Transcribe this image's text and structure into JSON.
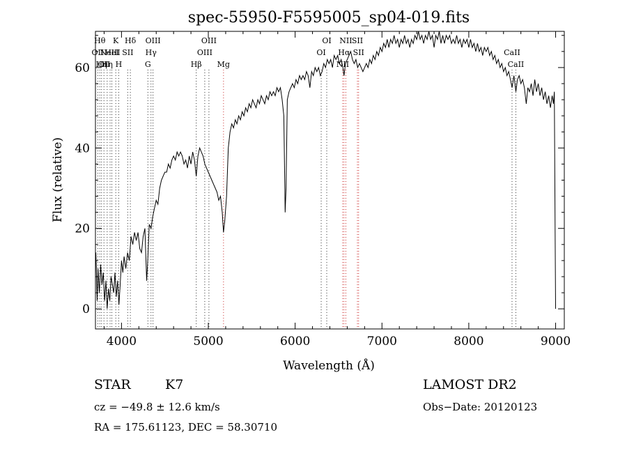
{
  "chart_data": {
    "type": "line",
    "title": "spec-55950-F5595005_sp04-019.fits",
    "xlabel": "Wavelength (Å)",
    "ylabel": "Flux (relative)",
    "xlim": [
      3700,
      9100
    ],
    "ylim": [
      -5,
      69
    ],
    "x_ticks": [
      4000,
      5000,
      6000,
      7000,
      8000,
      9000
    ],
    "y_ticks": [
      0,
      20,
      40,
      60
    ],
    "series": [
      {
        "color": "#000000",
        "points": [
          [
            3705,
            14
          ],
          [
            3720,
            2
          ],
          [
            3730,
            10
          ],
          [
            3745,
            4
          ],
          [
            3760,
            11
          ],
          [
            3775,
            6
          ],
          [
            3790,
            9
          ],
          [
            3805,
            2
          ],
          [
            3820,
            7
          ],
          [
            3835,
            0
          ],
          [
            3850,
            5
          ],
          [
            3865,
            2
          ],
          [
            3880,
            8
          ],
          [
            3895,
            6
          ],
          [
            3910,
            4
          ],
          [
            3925,
            9
          ],
          [
            3940,
            3
          ],
          [
            3955,
            7
          ],
          [
            3970,
            1
          ],
          [
            3985,
            6
          ],
          [
            4000,
            12
          ],
          [
            4015,
            9
          ],
          [
            4030,
            13
          ],
          [
            4050,
            10
          ],
          [
            4070,
            14
          ],
          [
            4090,
            12
          ],
          [
            4110,
            18
          ],
          [
            4130,
            16
          ],
          [
            4150,
            19
          ],
          [
            4170,
            17
          ],
          [
            4190,
            19
          ],
          [
            4210,
            15
          ],
          [
            4230,
            14
          ],
          [
            4250,
            18
          ],
          [
            4270,
            20
          ],
          [
            4290,
            7
          ],
          [
            4300,
            11
          ],
          [
            4320,
            21
          ],
          [
            4340,
            20
          ],
          [
            4360,
            23
          ],
          [
            4380,
            25
          ],
          [
            4400,
            27
          ],
          [
            4420,
            26
          ],
          [
            4440,
            30
          ],
          [
            4460,
            32
          ],
          [
            4480,
            33
          ],
          [
            4500,
            34
          ],
          [
            4520,
            34
          ],
          [
            4540,
            36
          ],
          [
            4560,
            35
          ],
          [
            4580,
            37
          ],
          [
            4600,
            38
          ],
          [
            4620,
            37
          ],
          [
            4640,
            39
          ],
          [
            4660,
            38
          ],
          [
            4680,
            39
          ],
          [
            4700,
            38
          ],
          [
            4720,
            36
          ],
          [
            4740,
            37
          ],
          [
            4760,
            35
          ],
          [
            4780,
            38
          ],
          [
            4800,
            36
          ],
          [
            4820,
            39
          ],
          [
            4840,
            37
          ],
          [
            4861,
            33
          ],
          [
            4880,
            38
          ],
          [
            4900,
            40
          ],
          [
            4920,
            39
          ],
          [
            4940,
            38
          ],
          [
            4960,
            36
          ],
          [
            4980,
            35
          ],
          [
            5000,
            34
          ],
          [
            5020,
            33
          ],
          [
            5040,
            32
          ],
          [
            5060,
            31
          ],
          [
            5080,
            30
          ],
          [
            5100,
            29
          ],
          [
            5120,
            27
          ],
          [
            5140,
            28
          ],
          [
            5160,
            24
          ],
          [
            5175,
            19
          ],
          [
            5190,
            22
          ],
          [
            5210,
            28
          ],
          [
            5230,
            40
          ],
          [
            5250,
            44
          ],
          [
            5270,
            46
          ],
          [
            5290,
            45
          ],
          [
            5310,
            47
          ],
          [
            5330,
            46
          ],
          [
            5350,
            48
          ],
          [
            5370,
            47
          ],
          [
            5390,
            49
          ],
          [
            5410,
            48
          ],
          [
            5430,
            50
          ],
          [
            5450,
            49
          ],
          [
            5470,
            51
          ],
          [
            5490,
            50
          ],
          [
            5510,
            52
          ],
          [
            5530,
            51
          ],
          [
            5550,
            50
          ],
          [
            5570,
            52
          ],
          [
            5590,
            51
          ],
          [
            5610,
            53
          ],
          [
            5630,
            52
          ],
          [
            5650,
            51
          ],
          [
            5670,
            53
          ],
          [
            5690,
            52
          ],
          [
            5710,
            54
          ],
          [
            5730,
            53
          ],
          [
            5750,
            54
          ],
          [
            5770,
            53
          ],
          [
            5790,
            55
          ],
          [
            5810,
            54
          ],
          [
            5830,
            55
          ],
          [
            5850,
            52
          ],
          [
            5870,
            48
          ],
          [
            5885,
            24
          ],
          [
            5895,
            30
          ],
          [
            5910,
            52
          ],
          [
            5930,
            54
          ],
          [
            5950,
            55
          ],
          [
            5970,
            56
          ],
          [
            5990,
            55
          ],
          [
            6010,
            57
          ],
          [
            6030,
            56
          ],
          [
            6050,
            58
          ],
          [
            6070,
            57
          ],
          [
            6090,
            58
          ],
          [
            6110,
            57
          ],
          [
            6130,
            59
          ],
          [
            6150,
            58
          ],
          [
            6170,
            55
          ],
          [
            6190,
            59
          ],
          [
            6210,
            58
          ],
          [
            6230,
            60
          ],
          [
            6250,
            59
          ],
          [
            6270,
            60
          ],
          [
            6290,
            58
          ],
          [
            6310,
            59
          ],
          [
            6330,
            61
          ],
          [
            6350,
            60
          ],
          [
            6370,
            62
          ],
          [
            6390,
            61
          ],
          [
            6410,
            62
          ],
          [
            6430,
            60
          ],
          [
            6450,
            63
          ],
          [
            6470,
            62
          ],
          [
            6490,
            63
          ],
          [
            6510,
            61
          ],
          [
            6530,
            62
          ],
          [
            6550,
            60
          ],
          [
            6563,
            58
          ],
          [
            6580,
            61
          ],
          [
            6600,
            62
          ],
          [
            6620,
            63
          ],
          [
            6640,
            64
          ],
          [
            6660,
            62
          ],
          [
            6680,
            61
          ],
          [
            6700,
            62
          ],
          [
            6720,
            60
          ],
          [
            6740,
            61
          ],
          [
            6760,
            60
          ],
          [
            6780,
            59
          ],
          [
            6800,
            60
          ],
          [
            6820,
            61
          ],
          [
            6840,
            60
          ],
          [
            6860,
            62
          ],
          [
            6880,
            61
          ],
          [
            6900,
            63
          ],
          [
            6920,
            62
          ],
          [
            6940,
            64
          ],
          [
            6960,
            63
          ],
          [
            6980,
            65
          ],
          [
            7000,
            64
          ],
          [
            7020,
            66
          ],
          [
            7040,
            65
          ],
          [
            7060,
            67
          ],
          [
            7080,
            65
          ],
          [
            7100,
            67
          ],
          [
            7120,
            66
          ],
          [
            7140,
            68
          ],
          [
            7160,
            66
          ],
          [
            7180,
            67
          ],
          [
            7200,
            65
          ],
          [
            7220,
            67
          ],
          [
            7240,
            66
          ],
          [
            7260,
            68
          ],
          [
            7280,
            66
          ],
          [
            7300,
            67
          ],
          [
            7320,
            65
          ],
          [
            7340,
            67
          ],
          [
            7360,
            66
          ],
          [
            7380,
            68
          ],
          [
            7400,
            67
          ],
          [
            7420,
            69
          ],
          [
            7440,
            67
          ],
          [
            7460,
            68
          ],
          [
            7480,
            66
          ],
          [
            7500,
            68
          ],
          [
            7520,
            67
          ],
          [
            7540,
            69
          ],
          [
            7560,
            67
          ],
          [
            7580,
            68
          ],
          [
            7600,
            65
          ],
          [
            7620,
            68
          ],
          [
            7640,
            67
          ],
          [
            7660,
            69
          ],
          [
            7680,
            66
          ],
          [
            7700,
            68
          ],
          [
            7720,
            66
          ],
          [
            7740,
            68
          ],
          [
            7760,
            67
          ],
          [
            7780,
            68
          ],
          [
            7800,
            66
          ],
          [
            7820,
            67
          ],
          [
            7840,
            66
          ],
          [
            7860,
            68
          ],
          [
            7880,
            66
          ],
          [
            7900,
            67
          ],
          [
            7920,
            65
          ],
          [
            7940,
            67
          ],
          [
            7960,
            66
          ],
          [
            7980,
            67
          ],
          [
            8000,
            65
          ],
          [
            8020,
            67
          ],
          [
            8040,
            65
          ],
          [
            8060,
            66
          ],
          [
            8080,
            64
          ],
          [
            8100,
            66
          ],
          [
            8120,
            64
          ],
          [
            8140,
            65
          ],
          [
            8160,
            63
          ],
          [
            8180,
            65
          ],
          [
            8200,
            64
          ],
          [
            8220,
            65
          ],
          [
            8240,
            63
          ],
          [
            8260,
            64
          ],
          [
            8280,
            62
          ],
          [
            8300,
            63
          ],
          [
            8320,
            61
          ],
          [
            8340,
            62
          ],
          [
            8360,
            60
          ],
          [
            8380,
            61
          ],
          [
            8400,
            59
          ],
          [
            8420,
            60
          ],
          [
            8440,
            58
          ],
          [
            8460,
            59
          ],
          [
            8480,
            57
          ],
          [
            8498,
            55
          ],
          [
            8520,
            58
          ],
          [
            8542,
            54
          ],
          [
            8560,
            57
          ],
          [
            8580,
            58
          ],
          [
            8600,
            56
          ],
          [
            8620,
            57
          ],
          [
            8640,
            55
          ],
          [
            8662,
            51
          ],
          [
            8680,
            55
          ],
          [
            8700,
            54
          ],
          [
            8720,
            56
          ],
          [
            8740,
            53
          ],
          [
            8760,
            57
          ],
          [
            8780,
            54
          ],
          [
            8800,
            56
          ],
          [
            8820,
            53
          ],
          [
            8840,
            55
          ],
          [
            8860,
            52
          ],
          [
            8880,
            54
          ],
          [
            8900,
            51
          ],
          [
            8920,
            53
          ],
          [
            8940,
            50
          ],
          [
            8960,
            53
          ],
          [
            8975,
            51
          ],
          [
            8985,
            54
          ],
          [
            8995,
            17
          ],
          [
            9000,
            0
          ]
        ]
      }
    ],
    "line_markers": [
      {
        "w": 3727,
        "label": "OII",
        "row": 2,
        "color": "#333333"
      },
      {
        "w": 3750,
        "label": "Hθ",
        "row": 1,
        "color": "#333333"
      },
      {
        "w": 3770,
        "label": "Hη",
        "row": 3,
        "color": "#333333"
      },
      {
        "w": 3798,
        "label": "OII",
        "row": 3,
        "color": "#333333"
      },
      {
        "w": 3835,
        "label": "Hη",
        "row": 3,
        "color": "#333333"
      },
      {
        "w": 3869,
        "label": "NeIII",
        "row": 2,
        "color": "#333333"
      },
      {
        "w": 3889,
        "label": "HeI",
        "row": 2,
        "color": "#333333"
      },
      {
        "w": 3934,
        "label": "K",
        "row": 1,
        "color": "#333333"
      },
      {
        "w": 3968,
        "label": "H",
        "row": 3,
        "color": "#333333"
      },
      {
        "w": 4072,
        "label": "SII",
        "row": 2,
        "color": "#333333"
      },
      {
        "w": 4102,
        "label": "Hδ",
        "row": 1,
        "color": "#333333"
      },
      {
        "w": 4304,
        "label": "G",
        "row": 3,
        "color": "#333333"
      },
      {
        "w": 4340,
        "label": "Hγ",
        "row": 2,
        "color": "#333333"
      },
      {
        "w": 4363,
        "label": "OIII",
        "row": 1,
        "color": "#333333"
      },
      {
        "w": 4861,
        "label": "Hβ",
        "row": 3,
        "color": "#333333"
      },
      {
        "w": 4959,
        "label": "OIII",
        "row": 2,
        "color": "#333333"
      },
      {
        "w": 5007,
        "label": "OIII",
        "row": 1,
        "color": "#333333"
      },
      {
        "w": 5175,
        "label": "Mg",
        "row": 3,
        "color": "#cc3333"
      },
      {
        "w": 6300,
        "label": "OI",
        "row": 2,
        "color": "#333333"
      },
      {
        "w": 6364,
        "label": "OI",
        "row": 1,
        "color": "#333333"
      },
      {
        "w": 6548,
        "label": "NII",
        "row": 3,
        "color": "#cc3333"
      },
      {
        "w": 6563,
        "label": "Hα",
        "row": 2,
        "color": "#cc3333"
      },
      {
        "w": 6584,
        "label": "NII",
        "row": 1,
        "color": "#cc3333"
      },
      {
        "w": 6717,
        "label": "SII",
        "row": 1,
        "color": "#cc3333"
      },
      {
        "w": 6731,
        "label": "SII",
        "row": 2,
        "color": "#cc3333"
      },
      {
        "w": 8498,
        "label": "CaII",
        "row": 2,
        "color": "#333333"
      },
      {
        "w": 8542,
        "label": "CaII",
        "row": 3,
        "color": "#333333"
      }
    ]
  },
  "info": {
    "class": "STAR",
    "subclass": "K7",
    "survey": "LAMOST DR2",
    "cz": "cz = −49.8 ± 12.6 km/s",
    "obs_date": "Obs−Date: 20120123",
    "radec": "RA = 175.61123, DEC =  58.30710"
  }
}
